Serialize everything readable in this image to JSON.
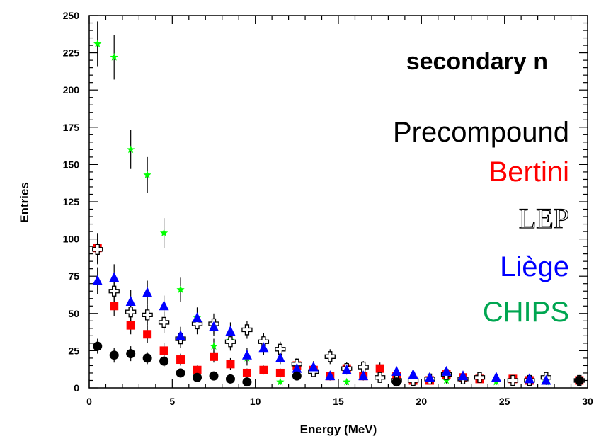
{
  "chart_data": {
    "type": "scatter",
    "title": "",
    "xlabel": "Energy (MeV)",
    "ylabel": "Entries",
    "xlim": [
      0,
      30
    ],
    "ylim": [
      0,
      250
    ],
    "x_ticks": [
      0,
      5,
      10,
      15,
      20,
      25,
      30
    ],
    "y_ticks": [
      0,
      25,
      50,
      75,
      100,
      125,
      150,
      175,
      200,
      225,
      250
    ],
    "grid": false,
    "annotations": {
      "heading": "secondary n",
      "legend": [
        {
          "label": "Precompound",
          "color": "#000000"
        },
        {
          "label": "Bertini",
          "color": "#ff0000"
        },
        {
          "label": "LEP",
          "color": "#000000"
        },
        {
          "label": "Liège",
          "color": "#0000ff"
        },
        {
          "label": "CHIPS",
          "color": "#00a651"
        }
      ]
    },
    "series": [
      {
        "color": "#00ff00",
        "marker": "star",
        "points": [
          [
            0.5,
            231,
            15
          ],
          [
            1.5,
            222,
            15
          ],
          [
            2.5,
            160,
            13
          ],
          [
            3.5,
            143,
            12
          ],
          [
            4.5,
            104,
            10
          ],
          [
            5.5,
            66,
            8
          ],
          [
            6.5,
            47,
            7
          ],
          [
            7.5,
            28,
            5
          ],
          [
            8.5,
            32,
            6
          ],
          [
            9.5,
            20,
            5
          ],
          [
            11.5,
            4,
            2
          ],
          [
            14.5,
            8,
            3
          ],
          [
            15.5,
            4,
            2
          ],
          [
            21.5,
            5,
            2
          ],
          [
            24.5,
            4,
            2
          ],
          [
            27.5,
            4,
            2
          ],
          [
            29.5,
            6,
            2
          ]
        ]
      },
      {
        "color": "#ff0000",
        "marker": "square",
        "points": [
          [
            0.5,
            94,
            10
          ],
          [
            1.5,
            55,
            7
          ],
          [
            2.5,
            42,
            6
          ],
          [
            3.5,
            36,
            6
          ],
          [
            4.5,
            25,
            5
          ],
          [
            5.5,
            19,
            4
          ],
          [
            6.5,
            12,
            3
          ],
          [
            7.5,
            21,
            4
          ],
          [
            8.5,
            16,
            4
          ],
          [
            9.5,
            10,
            3
          ],
          [
            10.5,
            12,
            3
          ],
          [
            11.5,
            10,
            3
          ],
          [
            12.5,
            15,
            4
          ],
          [
            13.5,
            12,
            3
          ],
          [
            14.5,
            8,
            3
          ],
          [
            15.5,
            13,
            4
          ],
          [
            16.5,
            8,
            3
          ],
          [
            17.5,
            13,
            4
          ],
          [
            18.5,
            8,
            3
          ],
          [
            19.5,
            5,
            2
          ],
          [
            20.5,
            5,
            2
          ],
          [
            21.5,
            9,
            3
          ],
          [
            22.5,
            7,
            3
          ],
          [
            23.5,
            6,
            2
          ],
          [
            25.5,
            6,
            2
          ],
          [
            26.5,
            5,
            2
          ],
          [
            29.5,
            5,
            2
          ]
        ]
      },
      {
        "color": "#000000",
        "marker": "cross-open",
        "points": [
          [
            0.5,
            93,
            10
          ],
          [
            1.5,
            65,
            8
          ],
          [
            2.5,
            51,
            7
          ],
          [
            3.5,
            49,
            7
          ],
          [
            4.5,
            44,
            7
          ],
          [
            5.5,
            33,
            6
          ],
          [
            6.5,
            43,
            7
          ],
          [
            7.5,
            43,
            7
          ],
          [
            8.5,
            31,
            6
          ],
          [
            9.5,
            39,
            6
          ],
          [
            10.5,
            31,
            6
          ],
          [
            11.5,
            26,
            5
          ],
          [
            12.5,
            16,
            4
          ],
          [
            13.5,
            11,
            3
          ],
          [
            14.5,
            21,
            5
          ],
          [
            15.5,
            13,
            4
          ],
          [
            16.5,
            14,
            4
          ],
          [
            17.5,
            7,
            3
          ],
          [
            18.5,
            5,
            2
          ],
          [
            19.5,
            5,
            2
          ],
          [
            20.5,
            6,
            2
          ],
          [
            21.5,
            9,
            3
          ],
          [
            22.5,
            6,
            2
          ],
          [
            23.5,
            7,
            3
          ],
          [
            25.5,
            5,
            2
          ],
          [
            26.5,
            5,
            2
          ],
          [
            27.5,
            7,
            3
          ],
          [
            29.5,
            5,
            2
          ]
        ]
      },
      {
        "color": "#0000ff",
        "marker": "triangle",
        "points": [
          [
            0.5,
            72,
            9
          ],
          [
            1.5,
            74,
            9
          ],
          [
            2.5,
            58,
            8
          ],
          [
            3.5,
            64,
            8
          ],
          [
            4.5,
            55,
            7
          ],
          [
            5.5,
            35,
            6
          ],
          [
            6.5,
            47,
            7
          ],
          [
            7.5,
            41,
            6
          ],
          [
            8.5,
            38,
            6
          ],
          [
            9.5,
            22,
            5
          ],
          [
            10.5,
            27,
            5
          ],
          [
            11.5,
            20,
            4
          ],
          [
            12.5,
            13,
            4
          ],
          [
            13.5,
            14,
            4
          ],
          [
            14.5,
            8,
            3
          ],
          [
            15.5,
            12,
            3
          ],
          [
            16.5,
            8,
            3
          ],
          [
            18.5,
            11,
            3
          ],
          [
            19.5,
            9,
            3
          ],
          [
            20.5,
            7,
            3
          ],
          [
            21.5,
            11,
            3
          ],
          [
            22.5,
            8,
            3
          ],
          [
            24.5,
            7,
            3
          ],
          [
            26.5,
            6,
            2
          ],
          [
            27.5,
            5,
            2
          ]
        ]
      },
      {
        "color": "#000000",
        "marker": "circle",
        "points": [
          [
            0.5,
            28,
            5
          ],
          [
            1.5,
            22,
            5
          ],
          [
            2.5,
            23,
            5
          ],
          [
            3.5,
            20,
            4
          ],
          [
            4.5,
            18,
            4
          ],
          [
            5.5,
            10,
            3
          ],
          [
            6.5,
            7,
            3
          ],
          [
            7.5,
            8,
            3
          ],
          [
            8.5,
            6,
            2
          ],
          [
            9.5,
            4,
            2
          ],
          [
            12.5,
            8,
            3
          ],
          [
            18.5,
            4,
            2
          ],
          [
            29.5,
            5,
            2
          ]
        ]
      }
    ]
  }
}
